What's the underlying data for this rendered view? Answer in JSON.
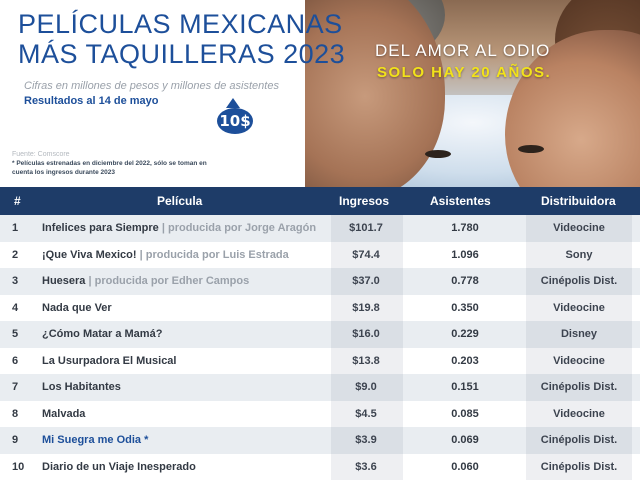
{
  "header": {
    "title_line_1": "PELÍCULAS MEXICANAS",
    "title_line_2": "MÁS TAQUILLERAS 2023",
    "subtitle": "Cifras en millones  de pesos y millones de asistentes",
    "results_date": "Resultados al 14 de mayo",
    "badge_text": "10$",
    "source": "Fuente: Comscore",
    "note": "* Películas estrenadas en diciembre del 2022, sólo se toman en cuenta los ingresos durante 2023",
    "tagline_1": "DEL AMOR AL ODIO",
    "tagline_2": "SOLO HAY 20 AÑOS."
  },
  "table": {
    "columns": [
      "#",
      "Película",
      "Ingresos",
      "Asistentes",
      "Distribuidora"
    ],
    "rows": [
      {
        "rank": "1",
        "film": "Infelices para Siempre",
        "producer": " | producida por Jorge Aragón",
        "gross": "$101.7",
        "attendance": "1.780",
        "distributor": "Videocine"
      },
      {
        "rank": "2",
        "film": "¡Que Viva Mexico!",
        "producer": " | producida por Luis Estrada",
        "gross": "$74.4",
        "attendance": "1.096",
        "distributor": "Sony"
      },
      {
        "rank": "3",
        "film": "Huesera",
        "producer": " | producida por Edher Campos",
        "gross": "$37.0",
        "attendance": "0.778",
        "distributor": "Cinépolis Dist."
      },
      {
        "rank": "4",
        "film": "Nada que Ver",
        "producer": "",
        "gross": "$19.8",
        "attendance": "0.350",
        "distributor": "Videocine"
      },
      {
        "rank": "5",
        "film": "¿Cómo Matar a Mamá?",
        "producer": "",
        "gross": "$16.0",
        "attendance": "0.229",
        "distributor": "Disney"
      },
      {
        "rank": "6",
        "film": "La Usurpadora El Musical",
        "producer": "",
        "gross": "$13.8",
        "attendance": "0.203",
        "distributor": "Videocine"
      },
      {
        "rank": "7",
        "film": "Los Habitantes",
        "producer": "",
        "gross": "$9.0",
        "attendance": "0.151",
        "distributor": "Cinépolis Dist."
      },
      {
        "rank": "8",
        "film": "Malvada",
        "producer": "",
        "gross": "$4.5",
        "attendance": "0.085",
        "distributor": "Videocine"
      },
      {
        "rank": "9",
        "film": "Mi Suegra me Odia *",
        "producer": "",
        "gross": "$3.9",
        "attendance": "0.069",
        "distributor": "Cinépolis Dist."
      },
      {
        "rank": "10",
        "film": "Diario de un Viaje Inesperado",
        "producer": "",
        "gross": "$3.6",
        "attendance": "0.060",
        "distributor": "Cinépolis Dist."
      }
    ]
  },
  "colors": {
    "brand_blue": "#1d4f9a",
    "header_bar": "#1e3c68",
    "tagline_yellow": "#f2e21a"
  }
}
